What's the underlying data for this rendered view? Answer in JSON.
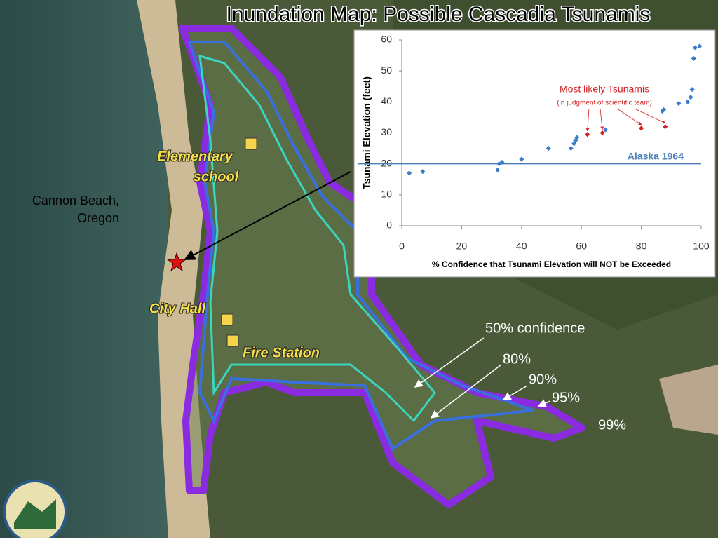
{
  "title": "Inundation Map: Possible Cascadia Tsunamis",
  "map_labels": {
    "school": [
      "Elementary",
      "school"
    ],
    "town": [
      "Cannon Beach,",
      "Oregon"
    ],
    "city_hall": "City Hall",
    "fire_station": "Fire Station",
    "confidence": [
      "50% confidence",
      "80%",
      "90%",
      "95%",
      "99%"
    ]
  },
  "chart_data": {
    "type": "scatter",
    "xlabel": "% Confidence that Tsunami Elevation will NOT be Exceeded",
    "ylabel": "Tsunami Elevation (feet)",
    "xlim": [
      0,
      100
    ],
    "xticks": [
      0,
      20,
      40,
      60,
      80,
      100
    ],
    "ylim": [
      0,
      60
    ],
    "yticks": [
      0,
      10,
      20,
      30,
      40,
      50,
      60
    ],
    "series": [
      {
        "color": "#3d7cc9",
        "x": [
          2.5,
          7,
          32,
          32.5,
          33.5,
          40,
          49,
          56.5,
          57.5,
          58,
          58.5,
          68,
          87,
          87.5,
          92.5,
          95.5,
          96.5,
          97,
          97.5,
          98,
          99.5
        ],
        "values": [
          17,
          17.5,
          18,
          20,
          20.5,
          21.5,
          25,
          25,
          26.5,
          27.5,
          28.5,
          31,
          37,
          37.5,
          39.5,
          40,
          41.5,
          44,
          54,
          57.5,
          58
        ]
      },
      {
        "color": "#d42020",
        "x": [
          62,
          67,
          80,
          88
        ],
        "values": [
          29.5,
          30,
          31.5,
          32
        ]
      }
    ],
    "reference_lines": [
      {
        "name": "Alaska 1964",
        "value": 20,
        "color": "#4a7ebb"
      }
    ],
    "annotations": [
      "Most likely Tsunamis",
      "(in judgment of scientific team)"
    ]
  }
}
